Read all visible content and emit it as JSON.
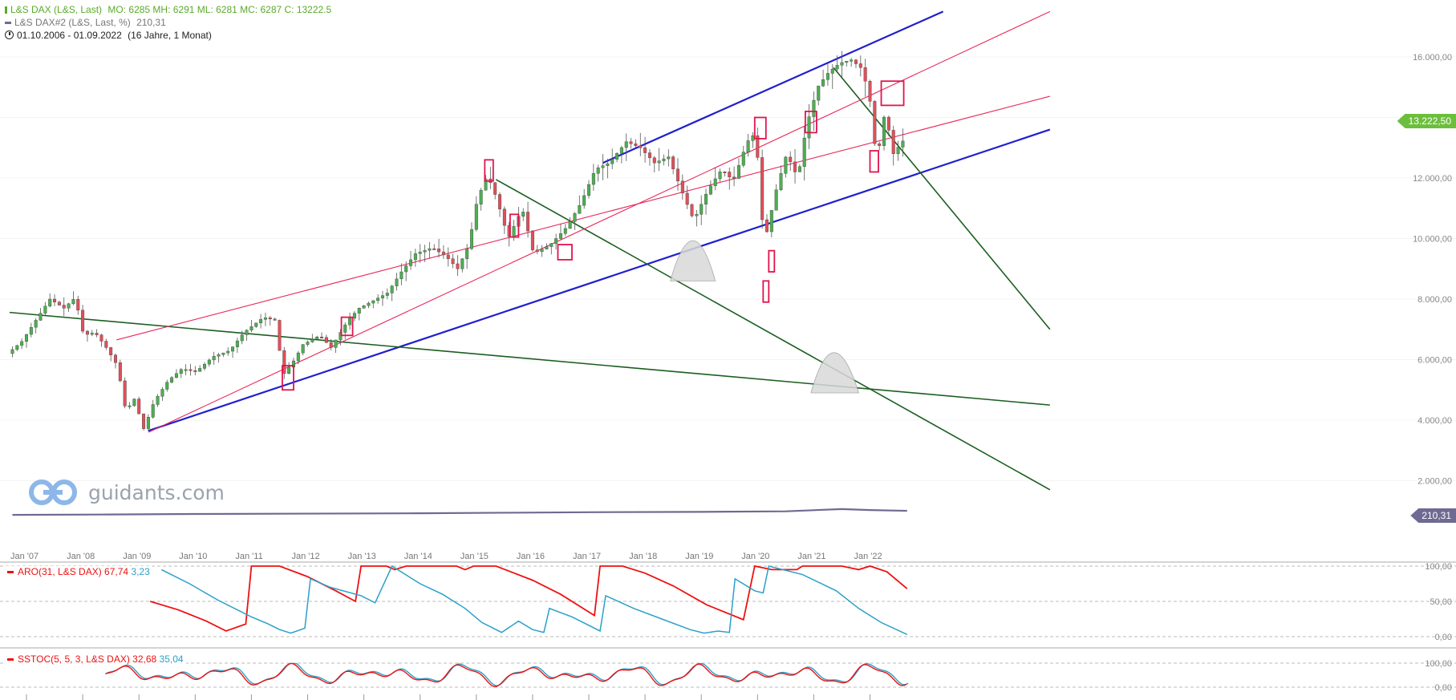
{
  "legend": {
    "main_label": "L&S DAX (L&S, Last)",
    "main_values": "MO: 6285 MH: 6291 ML: 6281 MC: 6287  C: 13222.5",
    "second_label": "L&S DAX#2 (L&S, Last, %)",
    "second_value": "210,31",
    "date_range": "01.10.2006 - 01.09.2022",
    "duration": "(16 Jahre, 1 Monat)"
  },
  "colors": {
    "up_candle": "#4caf50",
    "down_candle": "#e0505a",
    "blue_line": "#1f1fd0",
    "green_line": "#1b5e20",
    "red_line": "#e8285a",
    "marker": "#e0144e",
    "price_badge": "#6cbf3c",
    "compare_badge": "#6e6a92",
    "aro_up": "#ee1111",
    "aro_down": "#2aa0c8"
  },
  "watermark": {
    "text": "guidants.com"
  },
  "chart_data": [
    {
      "type": "line",
      "name": "price_panel",
      "ylim": [
        0,
        17500
      ],
      "y_ticks": [
        "2.000,00",
        "4.000,00",
        "6.000,00",
        "8.000,00",
        "10.000,00",
        "12.000,00",
        "14.000,00",
        "16.000,00"
      ],
      "y_tick_values": [
        2000,
        4000,
        6000,
        8000,
        10000,
        12000,
        14000,
        16000
      ],
      "x_ticks": [
        "Jan '07",
        "Jan '08",
        "Jan '09",
        "Jan '10",
        "Jan '11",
        "Jan '12",
        "Jan '13",
        "Jan '14",
        "Jan '15",
        "Jan '16",
        "Jan '17",
        "Jan '18",
        "Jan '19",
        "Jan '20",
        "Jan '21",
        "Jan '22"
      ],
      "x_tick_values": [
        2007,
        2008,
        2009,
        2010,
        2011,
        2012,
        2013,
        2014,
        2015,
        2016,
        2017,
        2018,
        2019,
        2020,
        2021,
        2022
      ],
      "xlim": [
        2006.7,
        2022.85
      ],
      "last_price": "13.222,50",
      "last_price_value": 13222.5,
      "compare_label": "210,31",
      "price_path": [
        [
          2006.75,
          6200
        ],
        [
          2007.0,
          6600
        ],
        [
          2007.25,
          7300
        ],
        [
          2007.5,
          8000
        ],
        [
          2007.75,
          7700
        ],
        [
          2007.95,
          8050
        ],
        [
          2008.1,
          6800
        ],
        [
          2008.3,
          6900
        ],
        [
          2008.5,
          6400
        ],
        [
          2008.7,
          5800
        ],
        [
          2008.85,
          4300
        ],
        [
          2009.0,
          4700
        ],
        [
          2009.17,
          3700
        ],
        [
          2009.35,
          4600
        ],
        [
          2009.6,
          5300
        ],
        [
          2009.85,
          5700
        ],
        [
          2010.1,
          5600
        ],
        [
          2010.4,
          6100
        ],
        [
          2010.7,
          6300
        ],
        [
          2010.95,
          6900
        ],
        [
          2011.3,
          7400
        ],
        [
          2011.5,
          7300
        ],
        [
          2011.65,
          5500
        ],
        [
          2011.85,
          6000
        ],
        [
          2012.0,
          6500
        ],
        [
          2012.3,
          6800
        ],
        [
          2012.5,
          6400
        ],
        [
          2012.8,
          7300
        ],
        [
          2013.0,
          7700
        ],
        [
          2013.3,
          8000
        ],
        [
          2013.5,
          8200
        ],
        [
          2013.75,
          8900
        ],
        [
          2014.0,
          9500
        ],
        [
          2014.3,
          9700
        ],
        [
          2014.55,
          9400
        ],
        [
          2014.75,
          9000
        ],
        [
          2014.95,
          9800
        ],
        [
          2015.1,
          11300
        ],
        [
          2015.28,
          12100
        ],
        [
          2015.45,
          11300
        ],
        [
          2015.65,
          10000
        ],
        [
          2015.9,
          11000
        ],
        [
          2016.1,
          9500
        ],
        [
          2016.4,
          9800
        ],
        [
          2016.7,
          10400
        ],
        [
          2016.95,
          11200
        ],
        [
          2017.2,
          12300
        ],
        [
          2017.45,
          12500
        ],
        [
          2017.75,
          13200
        ],
        [
          2018.0,
          13000
        ],
        [
          2018.25,
          12500
        ],
        [
          2018.5,
          12700
        ],
        [
          2018.75,
          11500
        ],
        [
          2018.95,
          10600
        ],
        [
          2019.2,
          11600
        ],
        [
          2019.45,
          12300
        ],
        [
          2019.65,
          11900
        ],
        [
          2019.9,
          13200
        ],
        [
          2020.05,
          13500
        ],
        [
          2020.2,
          9800
        ],
        [
          2020.4,
          11500
        ],
        [
          2020.6,
          12800
        ],
        [
          2020.8,
          12000
        ],
        [
          2020.95,
          13700
        ],
        [
          2021.15,
          15000
        ],
        [
          2021.35,
          15500
        ],
        [
          2021.55,
          15800
        ],
        [
          2021.75,
          15900
        ],
        [
          2021.95,
          15600
        ],
        [
          2022.1,
          14400
        ],
        [
          2022.2,
          12500
        ],
        [
          2022.35,
          14200
        ],
        [
          2022.5,
          12800
        ],
        [
          2022.66,
          13222
        ]
      ],
      "compare_path": [
        [
          2006.75,
          0.95
        ],
        [
          2008.5,
          0.97
        ],
        [
          2010.0,
          1.0
        ],
        [
          2012.0,
          1.02
        ],
        [
          2014.0,
          1.04
        ],
        [
          2015.5,
          1.07
        ],
        [
          2017.0,
          1.1
        ],
        [
          2019.0,
          1.12
        ],
        [
          2020.5,
          1.15
        ],
        [
          2021.5,
          1.28
        ],
        [
          2022.0,
          1.22
        ],
        [
          2022.66,
          1.18
        ]
      ],
      "trendlines": [
        {
          "color": "blue_line",
          "width": 2.2,
          "from": [
            2009.17,
            3650
          ],
          "to": [
            2025.2,
            13600
          ]
        },
        {
          "color": "blue_line",
          "width": 2.2,
          "from": [
            2017.25,
            12500
          ],
          "to": [
            2023.3,
            17500
          ]
        },
        {
          "color": "green_line",
          "width": 1.6,
          "from": [
            2006.7,
            7560
          ],
          "to": [
            2025.2,
            4500
          ]
        },
        {
          "color": "green_line",
          "width": 1.6,
          "from": [
            2015.35,
            11950
          ],
          "to": [
            2025.2,
            1700
          ]
        },
        {
          "color": "green_line",
          "width": 1.6,
          "from": [
            2021.35,
            15650
          ],
          "to": [
            2025.2,
            7000
          ]
        },
        {
          "color": "red_line",
          "width": 1.1,
          "from": [
            2009.17,
            3600
          ],
          "to": [
            2025.2,
            17500
          ]
        },
        {
          "color": "red_line",
          "width": 1.1,
          "from": [
            2008.6,
            6650
          ],
          "to": [
            2025.2,
            14700
          ]
        }
      ],
      "markers": [
        [
          2011.55,
          2011.75,
          5000,
          5800
        ],
        [
          2012.6,
          2012.8,
          6800,
          7400
        ],
        [
          2015.15,
          2015.3,
          11900,
          12600
        ],
        [
          2015.6,
          2015.75,
          10050,
          10800
        ],
        [
          2016.45,
          2016.7,
          9300,
          9800
        ],
        [
          2019.95,
          2020.15,
          13300,
          14000
        ],
        [
          2020.1,
          2020.2,
          7900,
          8600
        ],
        [
          2020.2,
          2020.3,
          8900,
          9600
        ],
        [
          2020.85,
          2021.05,
          13500,
          14200
        ],
        [
          2022.0,
          2022.15,
          12200,
          12900
        ],
        [
          2022.2,
          2022.6,
          14400,
          15200
        ]
      ],
      "humps": [
        [
          2018.45,
          2018.85,
          2019.25,
          8600,
          10000
        ],
        [
          2020.95,
          2021.35,
          2021.8,
          4900,
          6300
        ]
      ]
    },
    {
      "type": "line",
      "name": "aroon_panel",
      "title": "ARO(31, L&S DAX)",
      "values_label": [
        "67,74",
        "3,23"
      ],
      "ylim": [
        0,
        110
      ],
      "y_ticks": [
        "100,00",
        "50,00",
        "0,00"
      ],
      "y_tick_values": [
        100,
        50,
        0
      ],
      "series": [
        {
          "name": "aro_up",
          "points": [
            [
              2009.2,
              50
            ],
            [
              2009.7,
              38
            ],
            [
              2010.2,
              22
            ],
            [
              2010.55,
              8
            ],
            [
              2010.9,
              18
            ],
            [
              2011.0,
              100
            ],
            [
              2011.5,
              100
            ],
            [
              2012.0,
              85
            ],
            [
              2012.5,
              65
            ],
            [
              2012.85,
              50
            ],
            [
              2012.95,
              100
            ],
            [
              2013.4,
              100
            ],
            [
              2013.55,
              95
            ],
            [
              2013.75,
              100
            ],
            [
              2014.65,
              100
            ],
            [
              2014.8,
              95
            ],
            [
              2014.95,
              100
            ],
            [
              2015.35,
              100
            ],
            [
              2016.0,
              80
            ],
            [
              2016.5,
              60
            ],
            [
              2017.1,
              30
            ],
            [
              2017.2,
              100
            ],
            [
              2017.6,
              100
            ],
            [
              2018.0,
              90
            ],
            [
              2018.5,
              72
            ],
            [
              2019.1,
              45
            ],
            [
              2019.75,
              24
            ],
            [
              2019.95,
              100
            ],
            [
              2020.25,
              95
            ],
            [
              2020.7,
              95
            ],
            [
              2020.8,
              100
            ],
            [
              2021.5,
              100
            ],
            [
              2021.8,
              95
            ],
            [
              2022.0,
              100
            ],
            [
              2022.3,
              92
            ],
            [
              2022.66,
              68
            ]
          ]
        },
        {
          "name": "aro_down",
          "points": [
            [
              2009.4,
              95
            ],
            [
              2009.9,
              75
            ],
            [
              2010.4,
              52
            ],
            [
              2011.0,
              28
            ],
            [
              2011.3,
              18
            ],
            [
              2011.5,
              10
            ],
            [
              2011.7,
              5
            ],
            [
              2011.95,
              12
            ],
            [
              2012.05,
              82
            ],
            [
              2012.4,
              70
            ],
            [
              2012.95,
              58
            ],
            [
              2013.2,
              48
            ],
            [
              2013.5,
              100
            ],
            [
              2014.0,
              75
            ],
            [
              2014.4,
              60
            ],
            [
              2014.8,
              40
            ],
            [
              2015.1,
              20
            ],
            [
              2015.45,
              6
            ],
            [
              2015.75,
              22
            ],
            [
              2016.0,
              10
            ],
            [
              2016.2,
              6
            ],
            [
              2016.3,
              40
            ],
            [
              2016.7,
              28
            ],
            [
              2017.2,
              8
            ],
            [
              2017.3,
              58
            ],
            [
              2017.8,
              40
            ],
            [
              2018.3,
              25
            ],
            [
              2018.8,
              10
            ],
            [
              2019.05,
              5
            ],
            [
              2019.3,
              8
            ],
            [
              2019.5,
              6
            ],
            [
              2019.6,
              82
            ],
            [
              2019.95,
              65
            ],
            [
              2020.1,
              62
            ],
            [
              2020.2,
              100
            ],
            [
              2020.8,
              88
            ],
            [
              2021.4,
              65
            ],
            [
              2021.8,
              40
            ],
            [
              2022.2,
              20
            ],
            [
              2022.66,
              3
            ]
          ]
        }
      ]
    },
    {
      "type": "line",
      "name": "stochastic_panel",
      "title": "SSTOC(5, 5, 3, L&S DAX)",
      "values_label": [
        "32,68",
        "35,04"
      ],
      "ylim": [
        -5,
        110
      ],
      "y_ticks": [
        "100,00",
        "0,00"
      ],
      "y_tick_values": [
        100,
        0
      ]
    }
  ]
}
